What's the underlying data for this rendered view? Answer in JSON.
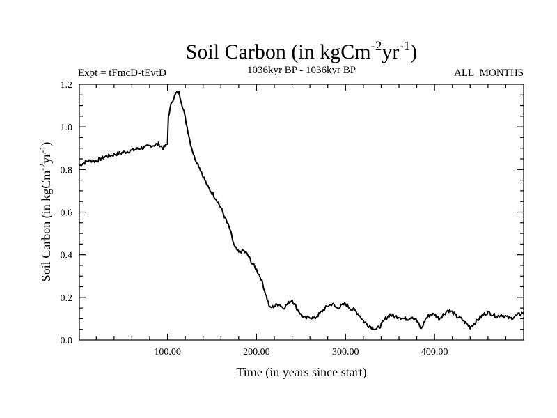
{
  "chart_data": {
    "type": "line",
    "title": "Soil Carbon (in kgCm",
    "title_sup1": "-2",
    "title_mid": "yr",
    "title_sup2": "-1",
    "title_end": ")",
    "subtitle_left": "Expt = tFmcD-tEvtD",
    "subtitle_center": "1036kyr BP - 1036kyr BP",
    "subtitle_right": "ALL_MONTHS",
    "xlabel": "Time (in years since start)",
    "ylabel_main": "Soil Carbon (in kgCm",
    "ylabel_sup1": "-2",
    "ylabel_mid": "yr",
    "ylabel_sup2": "-1",
    "ylabel_end": ")",
    "xlim": [
      1,
      500
    ],
    "ylim": [
      0.0,
      1.2
    ],
    "x_ticks": [
      100,
      200,
      300,
      400
    ],
    "x_tick_labels": [
      "100.00",
      "200.00",
      "300.00",
      "400.00"
    ],
    "y_ticks": [
      0.0,
      0.2,
      0.4,
      0.6,
      0.8,
      1.0,
      1.2
    ],
    "y_tick_labels": [
      "0.0",
      "0.2",
      "0.4",
      "0.6",
      "0.8",
      "1.0",
      "1.2"
    ],
    "series": [
      {
        "name": "Soil Carbon",
        "x": [
          1,
          10,
          20,
          30,
          40,
          50,
          60,
          70,
          80,
          90,
          95,
          100,
          101,
          105,
          110,
          113,
          118,
          122,
          126,
          130,
          135,
          140,
          145,
          150,
          155,
          160,
          165,
          170,
          175,
          180,
          185,
          190,
          195,
          200,
          205,
          210,
          215,
          220,
          225,
          230,
          235,
          240,
          245,
          250,
          255,
          260,
          265,
          270,
          275,
          280,
          285,
          290,
          295,
          300,
          305,
          310,
          315,
          320,
          325,
          330,
          335,
          340,
          345,
          350,
          355,
          360,
          365,
          370,
          375,
          380,
          385,
          390,
          395,
          400,
          405,
          410,
          415,
          420,
          425,
          430,
          435,
          440,
          445,
          450,
          455,
          460,
          465,
          470,
          475,
          480,
          485,
          490,
          495,
          500
        ],
        "values": [
          0.82,
          0.84,
          0.84,
          0.86,
          0.87,
          0.88,
          0.89,
          0.9,
          0.91,
          0.92,
          0.9,
          0.92,
          1.05,
          1.12,
          1.16,
          1.16,
          1.08,
          1.0,
          0.92,
          0.86,
          0.82,
          0.77,
          0.72,
          0.69,
          0.66,
          0.62,
          0.57,
          0.52,
          0.44,
          0.41,
          0.42,
          0.4,
          0.36,
          0.33,
          0.29,
          0.22,
          0.15,
          0.16,
          0.17,
          0.15,
          0.17,
          0.19,
          0.15,
          0.12,
          0.1,
          0.11,
          0.1,
          0.12,
          0.14,
          0.16,
          0.17,
          0.15,
          0.16,
          0.17,
          0.15,
          0.14,
          0.12,
          0.09,
          0.07,
          0.06,
          0.05,
          0.07,
          0.1,
          0.12,
          0.11,
          0.11,
          0.1,
          0.1,
          0.11,
          0.09,
          0.05,
          0.1,
          0.12,
          0.12,
          0.1,
          0.12,
          0.14,
          0.13,
          0.11,
          0.1,
          0.08,
          0.06,
          0.08,
          0.1,
          0.12,
          0.13,
          0.12,
          0.11,
          0.12,
          0.11,
          0.1,
          0.11,
          0.12,
          0.13
        ]
      }
    ]
  },
  "colors": {
    "line": "#000000",
    "axes": "#000000",
    "background": "#ffffff"
  }
}
